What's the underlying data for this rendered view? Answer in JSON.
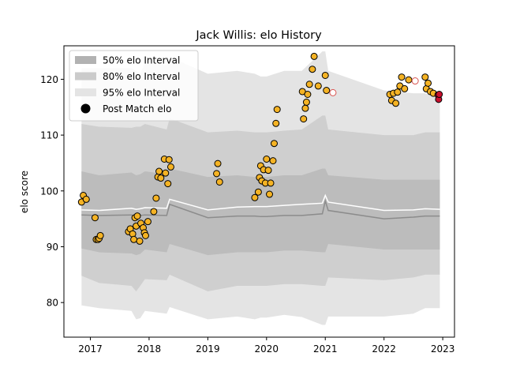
{
  "chart_data": {
    "type": "scatter",
    "title": "Jack Willis: elo History",
    "xlabel": "",
    "ylabel": "elo score",
    "xlim": [
      2016.55,
      2023.2
    ],
    "ylim": [
      73.8,
      126.0
    ],
    "xticks": [
      2017,
      2018,
      2019,
      2020,
      2021,
      2022,
      2023
    ],
    "xtick_labels": [
      "2017",
      "2018",
      "2019",
      "2020",
      "2021",
      "2022",
      "2023"
    ],
    "yticks": [
      80,
      90,
      100,
      110,
      120
    ],
    "ytick_labels": [
      "80",
      "90",
      "100",
      "110",
      "120"
    ],
    "grid": false,
    "legend_position": "top-left",
    "legend": [
      {
        "label": "50% elo Interval",
        "kind": "band",
        "color": "#b2b2b2"
      },
      {
        "label": "80% elo Interval",
        "kind": "band",
        "color": "#cbcbcb"
      },
      {
        "label": "95% elo Interval",
        "kind": "band",
        "color": "#e4e4e4"
      },
      {
        "label": "Post Match elo",
        "kind": "marker",
        "color": "#000000"
      }
    ],
    "colors": {
      "band95": "#e4e4e4",
      "band80": "#cfcfcf",
      "band50": "#bcbcbc",
      "median_line": "#8c8c8c",
      "mean_line": "#ffffff",
      "marker_fill": "#f5b324",
      "marker_edge": "#000000",
      "recent_fill": "#c8102e",
      "open_marker_edge": "#d9534f"
    },
    "bands": {
      "x": [
        2016.85,
        2017.15,
        2017.7,
        2017.78,
        2017.85,
        2017.93,
        2018.3,
        2018.35,
        2019.0,
        2019.5,
        2019.8,
        2019.9,
        2020.0,
        2020.3,
        2020.6,
        2020.95,
        2021.0,
        2021.05,
        2022.0,
        2022.5,
        2022.7,
        2022.95
      ],
      "lo95": [
        79.5,
        79.0,
        78.5,
        77.0,
        77.2,
        78.5,
        78.0,
        79.2,
        77.0,
        77.5,
        77.0,
        77.3,
        77.3,
        77.8,
        77.4,
        76.0,
        76.0,
        77.5,
        77.5,
        78.0,
        79.0,
        79.0
      ],
      "hi95": [
        122.0,
        122.0,
        122.0,
        121.5,
        121.0,
        123.0,
        122.5,
        124.0,
        121.0,
        121.5,
        121.0,
        120.5,
        120.5,
        121.5,
        121.5,
        125.0,
        125.0,
        121.5,
        118.0,
        117.5,
        117.5,
        116.5
      ],
      "lo80": [
        84.8,
        83.5,
        83.0,
        82.0,
        83.0,
        84.2,
        84.0,
        85.0,
        82.0,
        83.0,
        83.0,
        83.0,
        83.0,
        83.3,
        83.3,
        83.0,
        83.0,
        84.5,
        84.0,
        84.5,
        85.0,
        85.0
      ],
      "hi80": [
        112.0,
        111.5,
        111.3,
        111.5,
        111.5,
        112.0,
        111.0,
        113.0,
        110.5,
        110.8,
        110.5,
        110.5,
        110.5,
        110.8,
        111.0,
        113.5,
        113.5,
        111.0,
        110.0,
        110.0,
        110.5,
        110.5
      ],
      "lo50": [
        89.7,
        89.0,
        88.8,
        88.5,
        88.7,
        89.5,
        89.0,
        90.5,
        88.5,
        89.0,
        89.0,
        89.0,
        89.0,
        89.3,
        89.3,
        89.0,
        89.0,
        90.5,
        89.5,
        89.5,
        89.5,
        89.5
      ],
      "hi50": [
        103.5,
        102.8,
        103.3,
        102.8,
        103.0,
        103.5,
        103.0,
        104.0,
        102.5,
        102.8,
        102.5,
        102.5,
        102.5,
        102.8,
        102.8,
        104.0,
        104.0,
        102.8,
        102.0,
        102.0,
        102.0,
        102.0
      ],
      "median": [
        95.7,
        95.6,
        95.7,
        95.4,
        95.6,
        95.7,
        95.6,
        97.6,
        95.2,
        95.5,
        95.5,
        95.4,
        95.4,
        95.6,
        95.6,
        95.9,
        98.2,
        96.5,
        95.0,
        95.3,
        95.5,
        95.5
      ],
      "mean": [
        96.6,
        96.5,
        96.9,
        96.7,
        96.8,
        97.0,
        96.9,
        98.5,
        96.6,
        97.1,
        97.2,
        97.2,
        97.2,
        97.4,
        97.6,
        97.8,
        99.2,
        98.0,
        96.5,
        96.6,
        96.8,
        96.7
      ]
    },
    "points": [
      {
        "x": 2016.85,
        "y": 98.0
      },
      {
        "x": 2016.88,
        "y": 99.2
      },
      {
        "x": 2016.93,
        "y": 98.5
      },
      {
        "x": 2017.08,
        "y": 95.2
      },
      {
        "x": 2017.1,
        "y": 91.3
      },
      {
        "x": 2017.13,
        "y": 91.3
      },
      {
        "x": 2017.15,
        "y": 91.5
      },
      {
        "x": 2017.17,
        "y": 92.0
      },
      {
        "x": 2017.65,
        "y": 92.7
      },
      {
        "x": 2017.68,
        "y": 93.2
      },
      {
        "x": 2017.72,
        "y": 92.3
      },
      {
        "x": 2017.74,
        "y": 91.3
      },
      {
        "x": 2017.76,
        "y": 95.2
      },
      {
        "x": 2017.78,
        "y": 93.7
      },
      {
        "x": 2017.8,
        "y": 95.5
      },
      {
        "x": 2017.84,
        "y": 91.0
      },
      {
        "x": 2017.86,
        "y": 94.2
      },
      {
        "x": 2017.9,
        "y": 93.4
      },
      {
        "x": 2017.92,
        "y": 92.5
      },
      {
        "x": 2017.94,
        "y": 92.0
      },
      {
        "x": 2017.98,
        "y": 94.5
      },
      {
        "x": 2018.08,
        "y": 96.3
      },
      {
        "x": 2018.12,
        "y": 98.7
      },
      {
        "x": 2018.15,
        "y": 102.5
      },
      {
        "x": 2018.17,
        "y": 103.5
      },
      {
        "x": 2018.2,
        "y": 102.3
      },
      {
        "x": 2018.26,
        "y": 105.7
      },
      {
        "x": 2018.28,
        "y": 103.2
      },
      {
        "x": 2018.32,
        "y": 101.3
      },
      {
        "x": 2018.34,
        "y": 105.6
      },
      {
        "x": 2018.37,
        "y": 104.3
      },
      {
        "x": 2019.15,
        "y": 103.1
      },
      {
        "x": 2019.17,
        "y": 104.9
      },
      {
        "x": 2019.2,
        "y": 101.6
      },
      {
        "x": 2019.8,
        "y": 98.8
      },
      {
        "x": 2019.86,
        "y": 99.8
      },
      {
        "x": 2019.88,
        "y": 102.4
      },
      {
        "x": 2019.9,
        "y": 104.5
      },
      {
        "x": 2019.92,
        "y": 101.8
      },
      {
        "x": 2019.95,
        "y": 103.8
      },
      {
        "x": 2019.98,
        "y": 101.4
      },
      {
        "x": 2020.0,
        "y": 105.7
      },
      {
        "x": 2020.03,
        "y": 103.7
      },
      {
        "x": 2020.05,
        "y": 99.4
      },
      {
        "x": 2020.07,
        "y": 101.4
      },
      {
        "x": 2020.11,
        "y": 105.4
      },
      {
        "x": 2020.13,
        "y": 108.5
      },
      {
        "x": 2020.16,
        "y": 112.1
      },
      {
        "x": 2020.18,
        "y": 114.6
      },
      {
        "x": 2020.61,
        "y": 117.8
      },
      {
        "x": 2020.63,
        "y": 112.9
      },
      {
        "x": 2020.66,
        "y": 114.8
      },
      {
        "x": 2020.68,
        "y": 115.9
      },
      {
        "x": 2020.7,
        "y": 117.3
      },
      {
        "x": 2020.73,
        "y": 119.1
      },
      {
        "x": 2020.78,
        "y": 121.8
      },
      {
        "x": 2020.81,
        "y": 124.1
      },
      {
        "x": 2020.88,
        "y": 118.8
      },
      {
        "x": 2021.0,
        "y": 120.7
      },
      {
        "x": 2021.02,
        "y": 118.0
      },
      {
        "x": 2022.1,
        "y": 117.3
      },
      {
        "x": 2022.13,
        "y": 116.2
      },
      {
        "x": 2022.16,
        "y": 117.5
      },
      {
        "x": 2022.2,
        "y": 115.7
      },
      {
        "x": 2022.23,
        "y": 117.7
      },
      {
        "x": 2022.27,
        "y": 118.8
      },
      {
        "x": 2022.3,
        "y": 120.4
      },
      {
        "x": 2022.35,
        "y": 118.3
      },
      {
        "x": 2022.42,
        "y": 119.9
      },
      {
        "x": 2022.7,
        "y": 120.4
      },
      {
        "x": 2022.72,
        "y": 118.3
      },
      {
        "x": 2022.75,
        "y": 119.3
      },
      {
        "x": 2022.79,
        "y": 117.8
      },
      {
        "x": 2022.84,
        "y": 117.5
      }
    ],
    "open_points": [
      {
        "x": 2021.13,
        "y": 117.6
      },
      {
        "x": 2022.53,
        "y": 119.7
      }
    ],
    "recent_points": [
      {
        "x": 2022.92,
        "y": 117.2
      },
      {
        "x": 2022.93,
        "y": 116.4
      },
      {
        "x": 2022.94,
        "y": 117.3
      }
    ]
  }
}
